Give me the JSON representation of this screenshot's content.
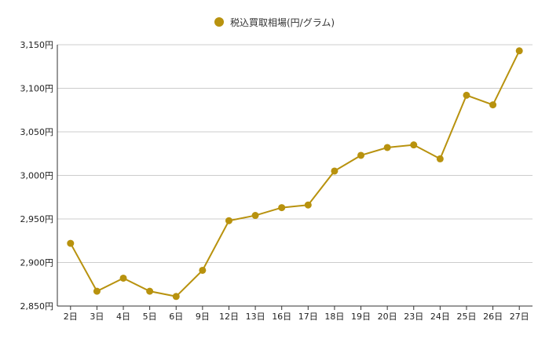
{
  "chart_data": {
    "type": "line",
    "title": "",
    "xlabel": "",
    "ylabel": "",
    "legend_position": "top",
    "grid": true,
    "color": "#B8920E",
    "categories": [
      "2日",
      "3日",
      "4日",
      "5日",
      "6日",
      "9日",
      "12日",
      "13日",
      "16日",
      "17日",
      "18日",
      "19日",
      "20日",
      "23日",
      "24日",
      "25日",
      "26日",
      "27日"
    ],
    "series": [
      {
        "name": "税込買取相場(円/グラム)",
        "values": [
          2922,
          2867,
          2882,
          2867,
          2861,
          2891,
          2948,
          2954,
          2963,
          2966,
          3005,
          3023,
          3032,
          3035,
          3019,
          3092,
          3081,
          3143
        ]
      }
    ],
    "ylim": [
      2850,
      3150
    ],
    "yticks": [
      2850,
      2900,
      2950,
      3000,
      3050,
      3100,
      3150
    ],
    "ytick_labels": [
      "2,850円",
      "2,900円",
      "2,950円",
      "3,000円",
      "3,050円",
      "3,100円",
      "3,150円"
    ]
  }
}
